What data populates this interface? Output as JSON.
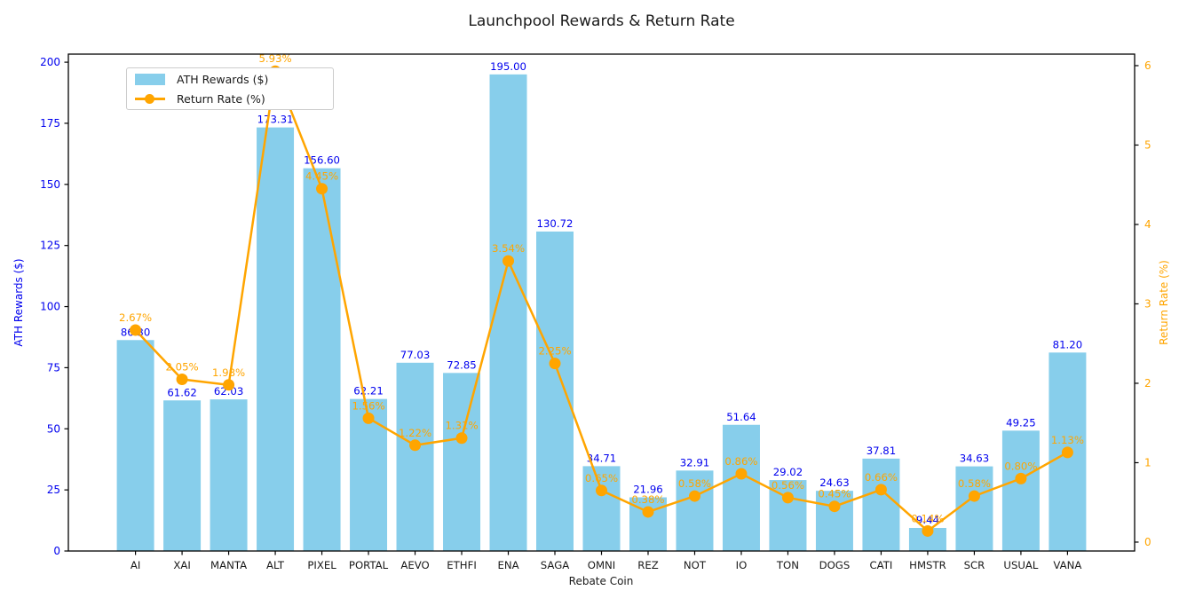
{
  "chart_data": {
    "type": "bar",
    "title": "Launchpool Rewards & Return Rate",
    "xlabel": "Rebate Coin",
    "ylabel_left": "ATH Rewards ($)",
    "ylabel_right": "Return Rate (%)",
    "categories": [
      "AI",
      "XAI",
      "MANTA",
      "ALT",
      "PIXEL",
      "PORTAL",
      "AEVO",
      "ETHFI",
      "ENA",
      "SAGA",
      "OMNI",
      "REZ",
      "NOT",
      "IO",
      "TON",
      "DOGS",
      "CATI",
      "HMSTR",
      "SCR",
      "USUAL",
      "VANA"
    ],
    "series": [
      {
        "name": "ATH Rewards ($)",
        "type": "bar",
        "axis": "left",
        "color": "#87CEEB",
        "label_color": "#0000EE",
        "values": [
          86.3,
          61.62,
          62.03,
          173.31,
          156.6,
          62.21,
          77.03,
          72.85,
          195.0,
          130.72,
          34.71,
          21.96,
          32.91,
          51.64,
          29.02,
          24.63,
          37.81,
          9.44,
          34.63,
          49.25,
          81.2
        ]
      },
      {
        "name": "Return Rate (%)",
        "type": "line",
        "axis": "right",
        "color": "#FFA500",
        "label_color": "#FFA500",
        "label_suffix": "%",
        "values": [
          2.67,
          2.05,
          1.98,
          5.93,
          4.45,
          1.56,
          1.22,
          1.31,
          3.54,
          2.25,
          0.65,
          0.38,
          0.58,
          0.86,
          0.56,
          0.45,
          0.66,
          0.14,
          0.58,
          0.8,
          1.13
        ]
      }
    ],
    "left_axis": {
      "ticks": [
        0,
        25,
        50,
        75,
        100,
        125,
        150,
        175,
        200
      ],
      "tick_color": "#0000EE",
      "ylim": [
        0,
        203.3
      ]
    },
    "right_axis": {
      "ticks": [
        0,
        1,
        2,
        3,
        4,
        5,
        6
      ],
      "tick_color": "#FFA500",
      "ylim": [
        -0.112,
        6.145
      ]
    },
    "x_axis": {
      "tick_color": "#1a1a1a"
    },
    "grid": false,
    "legend_position": "upper left",
    "spine_color": "#000000"
  },
  "legend": {
    "items": [
      {
        "label": "ATH Rewards ($)",
        "swatch": "skyblue-patch"
      },
      {
        "label": "Return Rate (%)",
        "swatch": "orange-line-marker"
      }
    ]
  }
}
